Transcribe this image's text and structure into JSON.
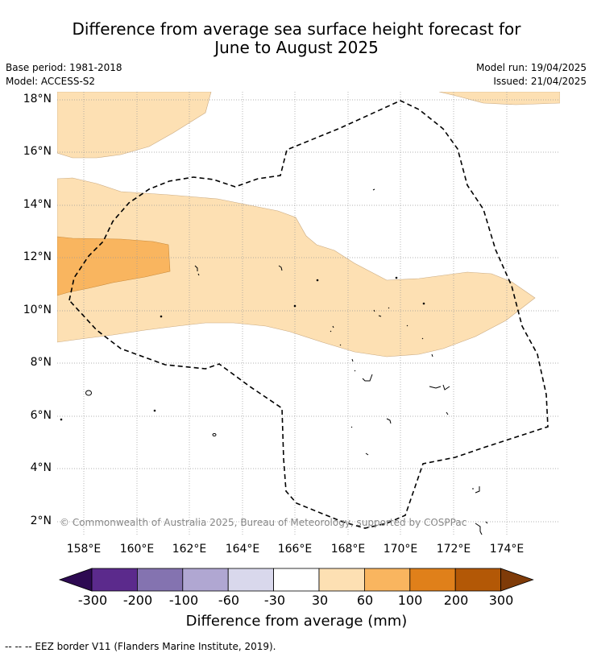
{
  "title_line1": "Difference from average sea surface height forecast for",
  "title_line2": "June to August 2025",
  "base_period": "Base period: 1981-2018",
  "model": "Model: ACCESS-S2",
  "model_run": "Model run: 19/04/2025",
  "issued": "Issued: 21/04/2025",
  "copyright": "© Commonwealth of Australia 2025, Bureau of Meteorology, supported by COSPPac",
  "lat_labels": [
    "18°N",
    "16°N",
    "14°N",
    "12°N",
    "10°N",
    "8°N",
    "6°N",
    "4°N",
    "2°N"
  ],
  "lon_labels": [
    "158°E",
    "160°E",
    "162°E",
    "164°E",
    "166°E",
    "168°E",
    "170°E",
    "172°E",
    "174°E"
  ],
  "colorbar": {
    "title": "Difference from average (mm)",
    "ticks": [
      "-300",
      "-200",
      "-100",
      "-60",
      "-30",
      "30",
      "60",
      "100",
      "200",
      "300"
    ],
    "colors": [
      "#2d0a52",
      "#5b2a8c",
      "#8473b0",
      "#b0a7d2",
      "#d9d8ec",
      "#ffffff",
      "#fde0b3",
      "#f9b55f",
      "#e0801a",
      "#b35806",
      "#7f3b08"
    ]
  },
  "legend_note": "-- -- -- EEZ border V11 (Flanders Marine Institute, 2019)."
}
